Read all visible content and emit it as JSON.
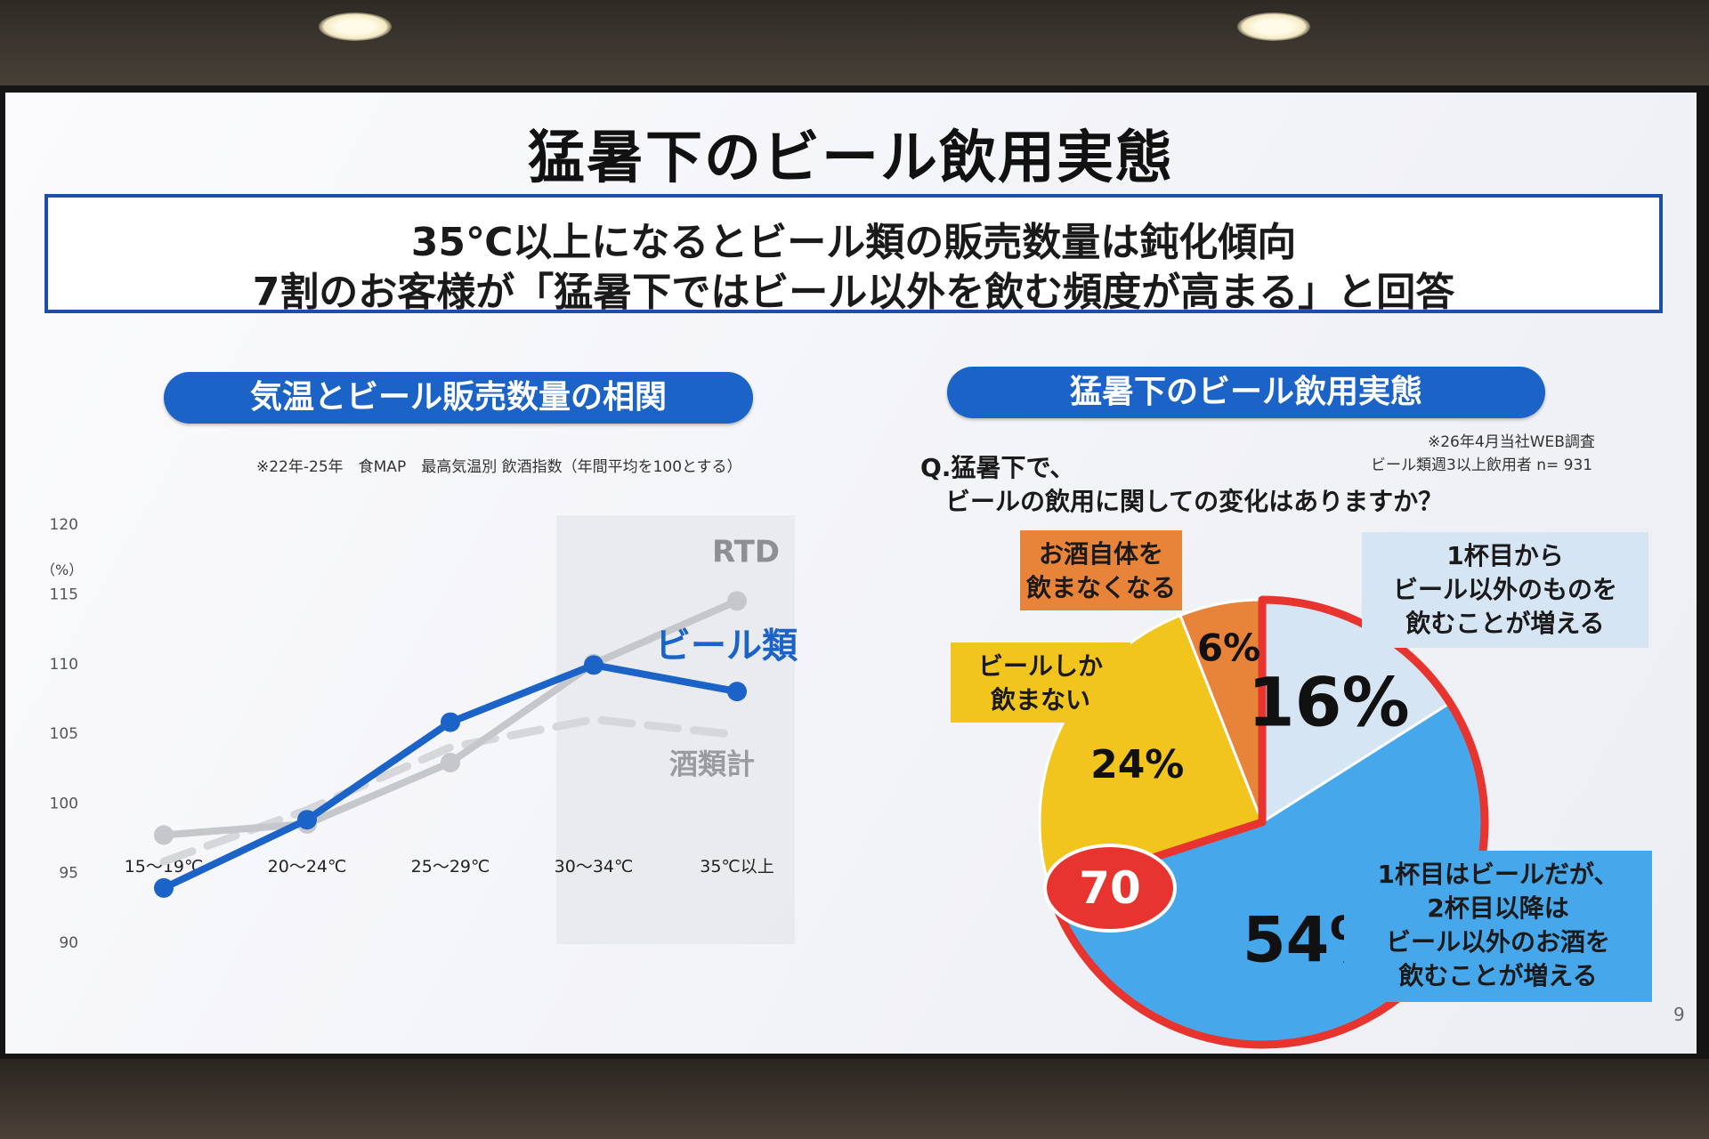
{
  "slide": {
    "title": "猛暑下のビール飲用実態",
    "headline_1": "35℃以上になるとビール類の販売数量は鈍化傾向",
    "headline_2": "7割のお客様が「猛暑下ではビール以外を飲む頻度が高まる」と回答",
    "page_number": "9"
  },
  "left_panel": {
    "heading": "気温とビール販売数量の相関",
    "note": "※22年-25年　食MAP　最高気温別 飲酒指数（年間平均を100とする）"
  },
  "right_panel": {
    "heading": "猛暑下のビール飲用実態",
    "survey_note_1": "※26年4月当社WEB調査",
    "survey_note_2": "ビール類週3以上飲用者 n= 931",
    "question_1": "Q.猛暑下で、",
    "question_2": "ビールの飲用に関しての変化はありますか？",
    "badge": "70"
  },
  "chart_data": [
    {
      "type": "line",
      "ylabel": "（%）",
      "ylim": [
        90,
        120
      ],
      "yticks": [
        90,
        95,
        100,
        105,
        110,
        115,
        120
      ],
      "categories": [
        "15～19℃",
        "20～24℃",
        "25～29℃",
        "30～34℃",
        "35℃以上"
      ],
      "highlight_category": "30～34℃",
      "series": [
        {
          "name": "RTD",
          "style": "solid",
          "color": "#c6c7cb",
          "values": [
            97.7,
            98.5,
            102.9,
            110.0,
            114.5
          ]
        },
        {
          "name": "ビール類",
          "style": "solid",
          "color": "#1c63c7",
          "values": [
            93.9,
            98.8,
            105.8,
            109.9,
            108.0
          ]
        },
        {
          "name": "酒類計",
          "style": "dashed",
          "color": "#d6d7da",
          "values": [
            95.8,
            99.5,
            104.0,
            106.0,
            104.9
          ]
        }
      ]
    },
    {
      "type": "pie",
      "slices": [
        {
          "label": "1杯目から\nビール以外のものを\n飲むことが増える",
          "value": 16,
          "display": "16%",
          "color": "#d6e5f3"
        },
        {
          "label": "1杯目はビールだが、\n2杯目以降は\nビール以外のお酒を\n飲むことが増える",
          "value": 54,
          "display": "54%",
          "color": "#46a7ea"
        },
        {
          "label": "ビールしか\n飲まない",
          "value": 24,
          "display": "24%",
          "color": "#f1c41e"
        },
        {
          "label": "お酒自体を\n飲まなくなる",
          "value": 6,
          "display": "6%",
          "color": "#e8843a"
        }
      ]
    }
  ]
}
